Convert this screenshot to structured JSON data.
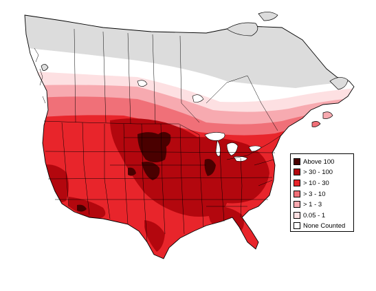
{
  "legend": {
    "items": [
      {
        "label": "Above 100",
        "color": "#4a0000"
      },
      {
        "label": "> 30 - 100",
        "color": "#b3070e"
      },
      {
        "label": "> 10 - 30",
        "color": "#e8252b"
      },
      {
        "label": "> 3 - 10",
        "color": "#f07078"
      },
      {
        "label": "> 1 - 3",
        "color": "#f7aab0"
      },
      {
        "label": "0.05 - 1",
        "color": "#fde0e2"
      },
      {
        "label": "None Counted",
        "color": "#ffffff"
      }
    ]
  },
  "colors": {
    "unsurveyed": "#dcdcdc",
    "border": "#000000",
    "ocean": "#ffffff"
  }
}
